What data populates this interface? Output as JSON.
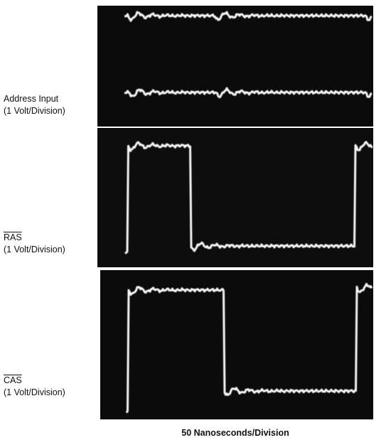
{
  "labels": [
    {
      "title": "Address Input",
      "scale": "(1 Volt/Division)"
    },
    {
      "title": "RAS",
      "scale": "(1 Volt/Division)"
    },
    {
      "title": "CAS",
      "scale": "(1 Volt/Division)"
    }
  ],
  "caption": "50 Nanoseconds/Division"
}
